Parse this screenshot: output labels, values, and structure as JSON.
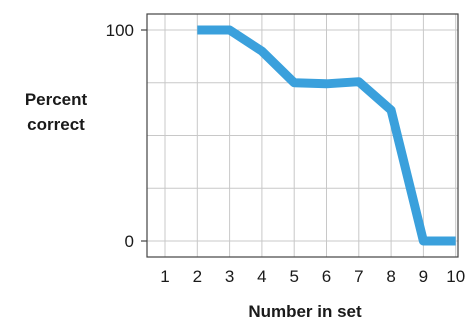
{
  "chart_data": {
    "type": "line",
    "xlabel": "Number in set",
    "ylabel_lines": [
      "Percent",
      "correct"
    ],
    "x_ticks": [
      "1",
      "2",
      "3",
      "4",
      "5",
      "6",
      "7",
      "8",
      "9",
      "10"
    ],
    "y_tick_labels": [
      "100",
      "0"
    ],
    "xlim": [
      1,
      10
    ],
    "ylim": [
      0,
      100
    ],
    "grid": true,
    "series": [
      {
        "color": "#3aa0dc",
        "points": [
          {
            "x": 2,
            "y": 100
          },
          {
            "x": 3,
            "y": 100
          },
          {
            "x": 4,
            "y": 90
          },
          {
            "x": 5,
            "y": 75
          },
          {
            "x": 6,
            "y": 74.5
          },
          {
            "x": 7,
            "y": 75.5
          },
          {
            "x": 8,
            "y": 62
          },
          {
            "x": 9,
            "y": 0
          },
          {
            "x": 10,
            "y": 0
          }
        ]
      }
    ]
  }
}
